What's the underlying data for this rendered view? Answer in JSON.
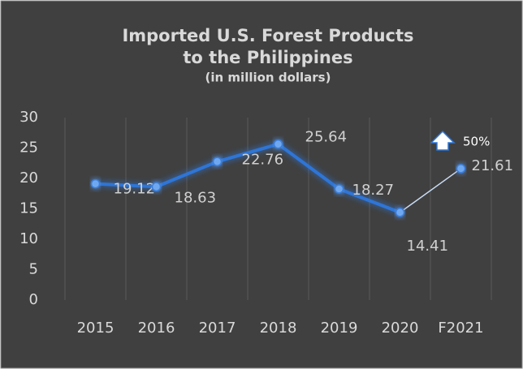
{
  "chart_data": {
    "type": "line",
    "title_lines": [
      "Imported U.S. Forest Products",
      "to the Philippines"
    ],
    "subtitle": "(in million dollars)",
    "categories": [
      "2015",
      "2016",
      "2017",
      "2018",
      "2019",
      "2020",
      "F2021"
    ],
    "values": [
      19.12,
      18.63,
      22.76,
      25.64,
      18.27,
      14.41,
      21.61
    ],
    "color": "#2e75d6",
    "ylim": [
      0,
      30
    ],
    "yticks": [
      0,
      5,
      10,
      15,
      20,
      25,
      30
    ],
    "annotation": "50%"
  }
}
